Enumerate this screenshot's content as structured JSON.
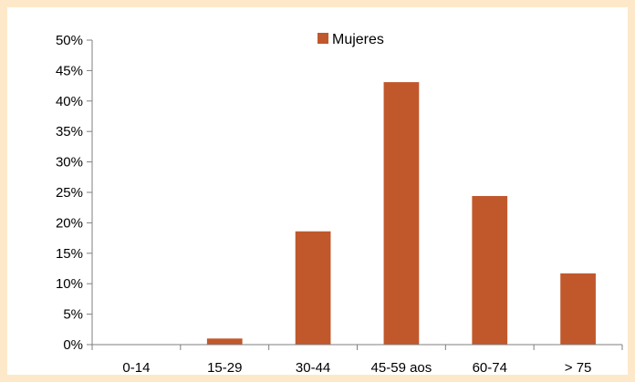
{
  "chart_data": {
    "type": "bar",
    "categories": [
      "0-14",
      "15-29",
      "30-44",
      "45-59 aos",
      "60-74",
      "> 75"
    ],
    "series": [
      {
        "name": "Mujeres",
        "values": [
          0,
          1,
          18.6,
          43.1,
          24.4,
          11.7
        ]
      }
    ],
    "y_ticks": [
      "0%",
      "5%",
      "10%",
      "15%",
      "20%",
      "25%",
      "30%",
      "35%",
      "40%",
      "45%",
      "50%"
    ],
    "ylim": [
      0,
      50
    ],
    "y_unit": "%",
    "grid": false,
    "legend_position": "top-center",
    "title": "",
    "xlabel": "",
    "ylabel": ""
  },
  "colors": {
    "bar": "#c0582c",
    "background": "#fde9c9",
    "plot_background": "#ffffff",
    "axis": "#7f7f7f"
  }
}
